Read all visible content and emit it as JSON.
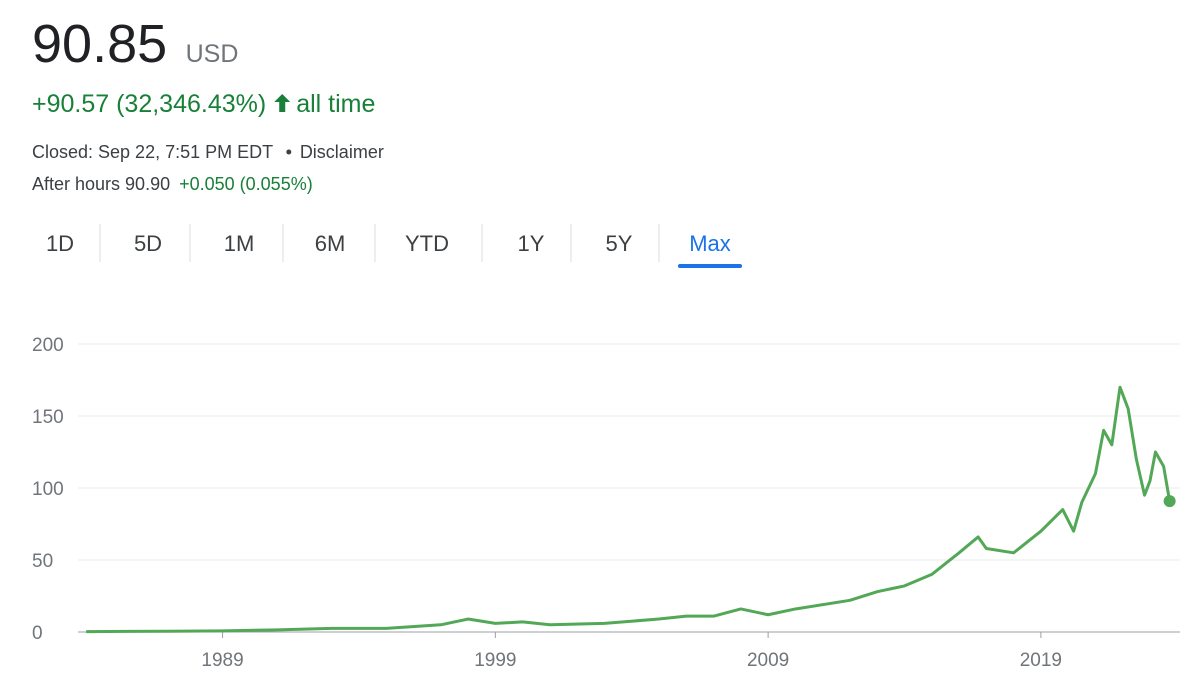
{
  "header": {
    "price": "90.85",
    "currency": "USD",
    "change": "+90.57 (32,346.43%)",
    "period": "all time",
    "status": "Closed: Sep 22, 7:51 PM EDT",
    "disclaimer": "Disclaimer",
    "after_hours_label": "After hours 90.90",
    "after_hours_change": "+0.050 (0.055%)"
  },
  "tabs": [
    "1D",
    "5D",
    "1M",
    "6M",
    "YTD",
    "1Y",
    "5Y",
    "Max"
  ],
  "selected_tab": 7,
  "chart_data": {
    "type": "line",
    "x": [
      1984.0,
      1987.0,
      1989.0,
      1991.0,
      1993.0,
      1995.0,
      1997.0,
      1998.0,
      1999.0,
      2000.0,
      2001.0,
      2003.0,
      2005.0,
      2006.0,
      2007.0,
      2008.0,
      2009.0,
      2010.0,
      2012.0,
      2013.0,
      2014.0,
      2015.0,
      2016.0,
      2016.7,
      2017.0,
      2018.0,
      2019.0,
      2019.8,
      2020.2,
      2020.5,
      2021.0,
      2021.3,
      2021.6,
      2021.9,
      2022.2,
      2022.5,
      2022.8,
      2023.0,
      2023.2,
      2023.5,
      2023.72
    ],
    "series": [
      {
        "color": "#52a857",
        "values": [
          0.3,
          0.5,
          0.8,
          1.5,
          2.5,
          2.5,
          5,
          9,
          6,
          7,
          5,
          6,
          9,
          11,
          11,
          16,
          12,
          16,
          22,
          28,
          32,
          40,
          55,
          66,
          58,
          55,
          70,
          85,
          70,
          90,
          110,
          140,
          130,
          170,
          155,
          120,
          95,
          105,
          125,
          115,
          90.85
        ]
      }
    ],
    "xlim": [
      1983.7,
      2024.1
    ],
    "xticks": [
      1989,
      1999,
      2009,
      2019
    ],
    "ylim": [
      0,
      200
    ],
    "yticks": [
      0,
      50,
      100,
      150,
      200
    ],
    "grid": true
  }
}
